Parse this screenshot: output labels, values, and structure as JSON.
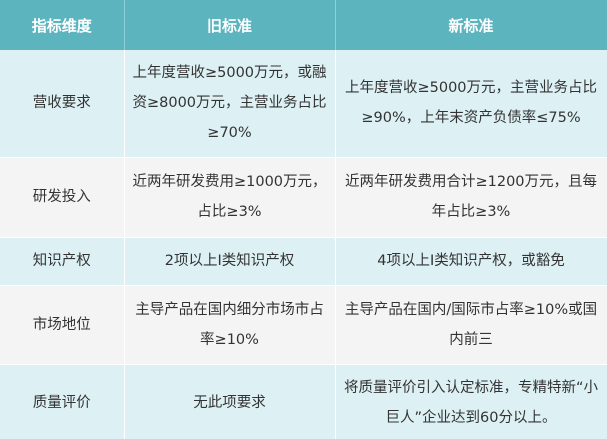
{
  "table": {
    "header": [
      "指标维度",
      "旧标准",
      "新标准"
    ],
    "rows": [
      [
        "营收要求",
        "上年度营收≥5000万元，或融资≥8000万元，主营业务占比≥70%",
        "上年度营收≥5000万元，主营业务占比≥90%，上年末资产负债率≤75%"
      ],
      [
        "研发投入",
        "近两年研发费用≥1000万元，占比≥3%",
        "近两年研发费用合计≥1200万元，且每年占比≥3%"
      ],
      [
        "知识产权",
        "2项以上Ⅰ类知识产权",
        "4项以上Ⅰ类知识产权，或豁免"
      ],
      [
        "市场地位",
        "主导产品在国内细分市场市占率≥10%",
        "主导产品在国内/国际市占率≥10%或国内前三"
      ],
      [
        "质量评价",
        "无此项要求",
        "将质量评价引入认定标准，专精特新“小巨人”企业达到60分以上。"
      ]
    ]
  }
}
